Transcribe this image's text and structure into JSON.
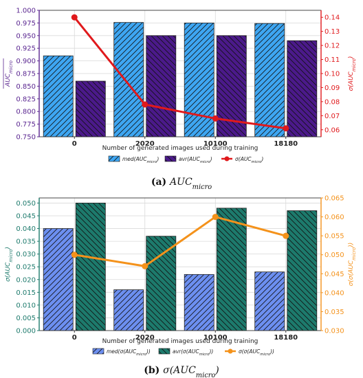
{
  "chart_data": [
    {
      "type": "bar",
      "panel_caption_label": "(a)",
      "panel_caption_text": "AUC",
      "panel_caption_sub": "micro",
      "categories": [
        "0",
        "2020",
        "10100",
        "18180"
      ],
      "xlabel": "Number of generated images used during training",
      "ylabel_left": "AUC_micro (overline)",
      "ylabel_left_main": "AUC",
      "ylabel_left_sub": "micro",
      "ylabel_right_main": "σ(AUC",
      "ylabel_right_sub": "micro",
      "ylabel_right_end": ")",
      "ylim_left": [
        0.75,
        1.0
      ],
      "yticks_left": [
        "0.750",
        "0.775",
        "0.800",
        "0.825",
        "0.850",
        "0.875",
        "0.900",
        "0.925",
        "0.950",
        "0.975",
        "1.000"
      ],
      "ylim_right": [
        0.055,
        0.145
      ],
      "yticks_right": [
        "0.06",
        "0.07",
        "0.08",
        "0.09",
        "0.10",
        "0.11",
        "0.12",
        "0.13",
        "0.14"
      ],
      "series": [
        {
          "name": "med(AUC_micro)",
          "kind": "bar",
          "axis": "left",
          "values": [
            0.91,
            0.976,
            0.975,
            0.974
          ]
        },
        {
          "name": "avr(AUC_micro)",
          "kind": "bar",
          "axis": "left",
          "values": [
            0.86,
            0.95,
            0.95,
            0.94
          ]
        },
        {
          "name": "σ(AUC_micro)",
          "kind": "line",
          "axis": "right",
          "values": [
            0.14,
            0.078,
            0.068,
            0.061
          ]
        }
      ],
      "legend": [
        {
          "pre": "med(",
          "main": "AUC",
          "sub": "micro",
          "post": ")"
        },
        {
          "pre": "avr(",
          "main": "AUC",
          "sub": "micro",
          "post": ")"
        },
        {
          "pre": "σ(",
          "main": "AUC",
          "sub": "micro",
          "post": ")"
        }
      ],
      "colors": {
        "bar1": "#3ea6f2",
        "bar2": "#4b1a8a",
        "line": "#e0191c",
        "left_axis": "#5a2690",
        "right_axis": "#e0191c"
      },
      "grid": true,
      "legend_placement": "bottom"
    },
    {
      "type": "bar",
      "panel_caption_label": "(b)",
      "panel_caption_text": "σ(AUC",
      "panel_caption_sub": "micro",
      "panel_caption_end": ")",
      "categories": [
        "0",
        "2020",
        "10100",
        "18180"
      ],
      "xlabel": "Number of generated images used during training",
      "ylabel_left_main": "σ(AUC",
      "ylabel_left_sub": "micro",
      "ylabel_left_end": ")",
      "ylabel_right_main": "σ(σ(AUC",
      "ylabel_right_sub": "micro",
      "ylabel_right_end": "))",
      "ylim_left": [
        0.0,
        0.052
      ],
      "yticks_left": [
        "0.000",
        "0.005",
        "0.010",
        "0.015",
        "0.020",
        "0.025",
        "0.030",
        "0.035",
        "0.040",
        "0.045",
        "0.050"
      ],
      "ylim_right": [
        0.03,
        0.065
      ],
      "yticks_right": [
        "0.030",
        "0.035",
        "0.040",
        "0.045",
        "0.050",
        "0.055",
        "0.060",
        "0.065"
      ],
      "series": [
        {
          "name": "med(σ(AUC_micro))",
          "kind": "bar",
          "axis": "left",
          "values": [
            0.04,
            0.016,
            0.022,
            0.023
          ]
        },
        {
          "name": "avr(σ(AUC_micro))",
          "kind": "bar",
          "axis": "left",
          "values": [
            0.05,
            0.037,
            0.048,
            0.047
          ]
        },
        {
          "name": "σ(σ(AUC_micro))",
          "kind": "line",
          "axis": "right",
          "values": [
            0.05,
            0.047,
            0.06,
            0.055
          ]
        }
      ],
      "legend": [
        {
          "pre": "med(σ(",
          "main": "AUC",
          "sub": "micro",
          "post": "))"
        },
        {
          "pre": "avr(σ(",
          "main": "AUC",
          "sub": "micro",
          "post": "))"
        },
        {
          "pre": "σ(σ(",
          "main": "AUC",
          "sub": "micro",
          "post": "))"
        }
      ],
      "colors": {
        "bar1": "#6c8ff0",
        "bar2": "#1d7a6c",
        "line": "#f4921b",
        "left_axis": "#1d7a6c",
        "right_axis": "#f4921b"
      },
      "grid": true,
      "legend_placement": "bottom"
    }
  ]
}
